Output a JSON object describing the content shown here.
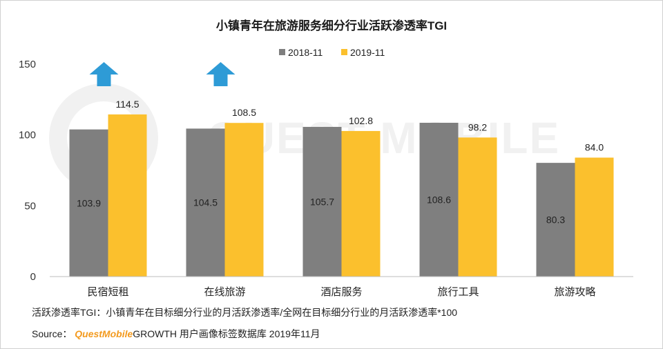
{
  "chart_data": {
    "type": "bar",
    "title": "小镇青年在旅游服务细分行业活跃渗透率TGI",
    "categories": [
      "民宿短租",
      "在线旅游",
      "酒店服务",
      "旅行工具",
      "旅游攻略"
    ],
    "series": [
      {
        "name": "2018-11",
        "color": "#7f7f7f",
        "values": [
          103.9,
          104.5,
          105.7,
          108.6,
          80.3
        ]
      },
      {
        "name": "2019-11",
        "color": "#fbc02d",
        "values": [
          114.5,
          108.5,
          102.8,
          98.2,
          84.0
        ]
      }
    ],
    "value_labels": [
      [
        "103.9",
        "104.5",
        "105.7",
        "108.6",
        "80.3"
      ],
      [
        "114.5",
        "108.5",
        "102.8",
        "98.2",
        "84.0"
      ]
    ],
    "ylim": [
      0,
      150
    ],
    "yticks": [
      "0",
      "50",
      "100",
      "150"
    ],
    "legend_position": "top-right",
    "grid": false,
    "highlight_arrows": {
      "categories": [
        "民宿短租",
        "在线旅游"
      ],
      "color": "#2e9bd6",
      "icon": "up-arrow-icon"
    }
  },
  "watermark": "QUEST MOBILE",
  "footnote": "活跃渗透率TGI：小镇青年在目标细分行业的月活跃渗透率/全网在目标细分行业的月活跃渗透率*100",
  "source": {
    "prefix": "Source：",
    "brand": "QuestMobile",
    "text": "GROWTH 用户画像标签数据库 2019年11月"
  }
}
